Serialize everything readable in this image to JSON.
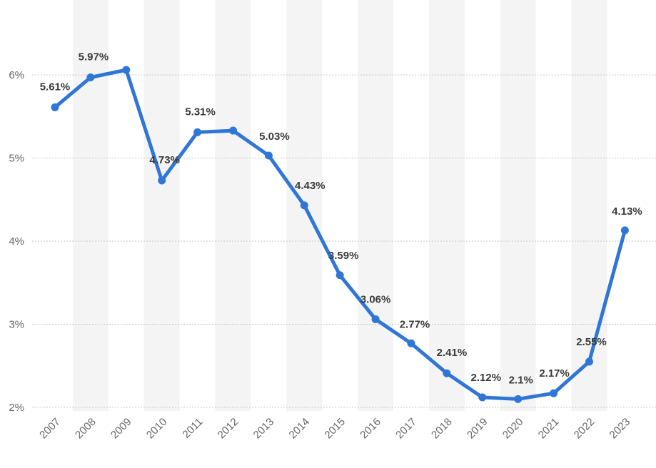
{
  "chart_data": {
    "type": "line",
    "title": "",
    "xlabel": "",
    "ylabel": "",
    "x": [
      "2007",
      "2008",
      "2009",
      "2010",
      "2011",
      "2012",
      "2013",
      "2014",
      "2015",
      "2016",
      "2017",
      "2018",
      "2019",
      "2020",
      "2021",
      "2022",
      "2023"
    ],
    "series": [
      {
        "values": [
          5.61,
          5.97,
          6.06,
          4.73,
          5.31,
          5.33,
          5.03,
          4.43,
          3.59,
          3.06,
          2.77,
          2.41,
          2.12,
          2.1,
          2.17,
          2.55,
          4.13
        ],
        "labels": [
          "5.61%",
          "5.97%",
          "",
          "4.73%",
          "5.31%",
          "",
          "5.03%",
          "4.43%",
          "3.59%",
          "3.06%",
          "2.77%",
          "2.41%",
          "2.12%",
          "2.1%",
          "2.17%",
          "2.55%",
          "4.13%"
        ]
      }
    ],
    "ylim": [
      2,
      6.5
    ],
    "yticks": [
      2,
      3,
      4,
      5,
      6
    ],
    "ytick_labels": [
      "2%",
      "3%",
      "4%",
      "5%",
      "6%"
    ],
    "grid": true,
    "colors": {
      "line": "#2f76d6",
      "band": "#f4f4f4",
      "grid": "#c9c9c9"
    }
  }
}
